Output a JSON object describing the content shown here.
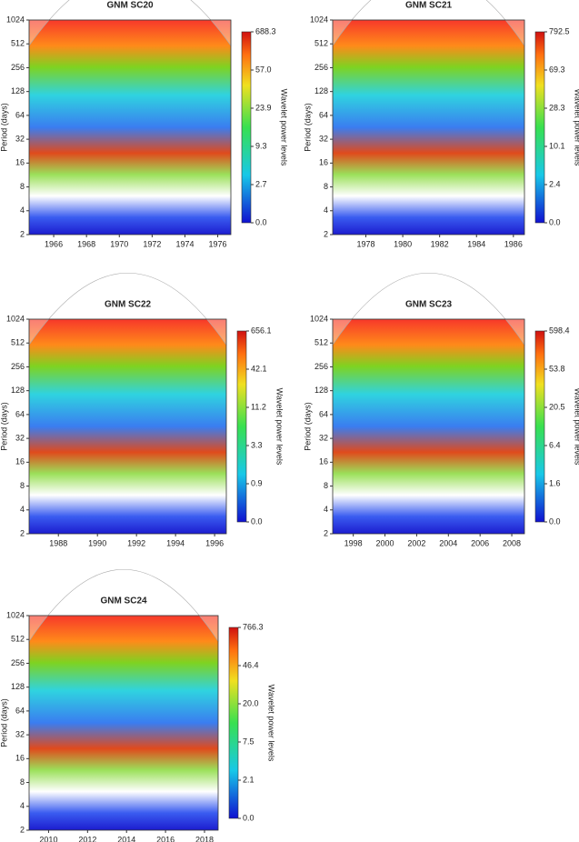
{
  "chart_data": [
    {
      "type": "heatmap",
      "title": "GNM SC20",
      "ylabel": "Period (days)",
      "colorbar_label": "Wavelet power levels",
      "log_y": true,
      "ylim": [
        2,
        1024
      ],
      "yticks": [
        2,
        4,
        8,
        16,
        32,
        64,
        128,
        256,
        512,
        1024
      ],
      "xlim": [
        1964.5,
        1976.8
      ],
      "xticks": [
        1966,
        1968,
        1970,
        1972,
        1974,
        1976
      ],
      "colorbar_levels": [
        {
          "value": 0,
          "label": "0.0"
        },
        {
          "value": 2.7,
          "label": "2.7"
        },
        {
          "value": 9.3,
          "label": "9.3"
        },
        {
          "value": 23.9,
          "label": "23.9"
        },
        {
          "value": 57,
          "label": "57.0"
        },
        {
          "value": 688.3,
          "label": "688.3"
        }
      ]
    },
    {
      "type": "heatmap",
      "title": "GNM SC21",
      "ylabel": "Period (days)",
      "colorbar_label": "Wavelet power levels",
      "log_y": true,
      "ylim": [
        2,
        1024
      ],
      "yticks": [
        2,
        4,
        8,
        16,
        32,
        64,
        128,
        256,
        512,
        1024
      ],
      "xlim": [
        1976.2,
        1986.6
      ],
      "xticks": [
        1978,
        1980,
        1982,
        1984,
        1986
      ],
      "colorbar_levels": [
        {
          "value": 0,
          "label": "0.0"
        },
        {
          "value": 2.4,
          "label": "2.4"
        },
        {
          "value": 10.1,
          "label": "10.1"
        },
        {
          "value": 28.3,
          "label": "28.3"
        },
        {
          "value": 69.3,
          "label": "69.3"
        },
        {
          "value": 792.5,
          "label": "792.5"
        }
      ]
    },
    {
      "type": "heatmap",
      "title": "GNM SC22",
      "ylabel": "Period (days)",
      "colorbar_label": "Wavelet power levels",
      "log_y": true,
      "ylim": [
        2,
        1024
      ],
      "yticks": [
        2,
        4,
        8,
        16,
        32,
        64,
        128,
        256,
        512,
        1024
      ],
      "xlim": [
        1986.5,
        1996.6
      ],
      "xticks": [
        1988,
        1990,
        1992,
        1994,
        1996
      ],
      "colorbar_levels": [
        {
          "value": 0,
          "label": "0.0"
        },
        {
          "value": 0.9,
          "label": "0.9"
        },
        {
          "value": 3.3,
          "label": "3.3"
        },
        {
          "value": 11.2,
          "label": "11.2"
        },
        {
          "value": 42.1,
          "label": "42.1"
        },
        {
          "value": 656.1,
          "label": "656.1"
        }
      ]
    },
    {
      "type": "heatmap",
      "title": "GNM SC23",
      "ylabel": "Period (days)",
      "colorbar_label": "Wavelet power levels",
      "log_y": true,
      "ylim": [
        2,
        1024
      ],
      "yticks": [
        2,
        4,
        8,
        16,
        32,
        64,
        128,
        256,
        512,
        1024
      ],
      "xlim": [
        1996.7,
        2008.8
      ],
      "xticks": [
        1998,
        2000,
        2002,
        2004,
        2006,
        2008
      ],
      "colorbar_levels": [
        {
          "value": 0,
          "label": "0.0"
        },
        {
          "value": 1.6,
          "label": "1.6"
        },
        {
          "value": 6.4,
          "label": "6.4"
        },
        {
          "value": 20.5,
          "label": "20.5"
        },
        {
          "value": 53.8,
          "label": "53.8"
        },
        {
          "value": 598.4,
          "label": "598.4"
        }
      ]
    },
    {
      "type": "heatmap",
      "title": "GNM SC24",
      "ylabel": "Period (days)",
      "colorbar_label": "Wavelet power levels",
      "log_y": true,
      "ylim": [
        2,
        1024
      ],
      "yticks": [
        2,
        4,
        8,
        16,
        32,
        64,
        128,
        256,
        512,
        1024
      ],
      "xlim": [
        2009.0,
        2018.7
      ],
      "xticks": [
        2010,
        2012,
        2014,
        2016,
        2018
      ],
      "colorbar_levels": [
        {
          "value": 0,
          "label": "0.0"
        },
        {
          "value": 2.1,
          "label": "2.1"
        },
        {
          "value": 7.5,
          "label": "7.5"
        },
        {
          "value": 20,
          "label": "20.0"
        },
        {
          "value": 46.4,
          "label": "46.4"
        },
        {
          "value": 766.3,
          "label": "766.3"
        }
      ]
    }
  ]
}
